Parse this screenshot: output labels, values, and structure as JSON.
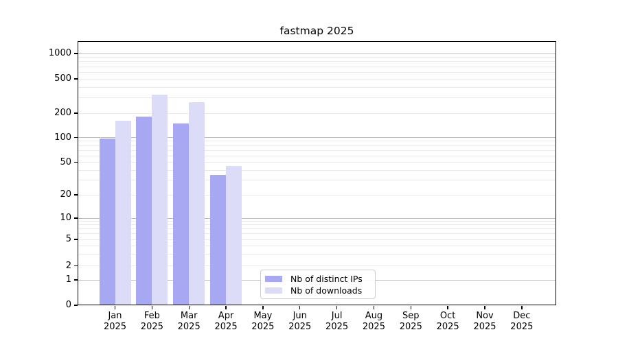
{
  "chart_data": {
    "type": "bar",
    "title": "fastmap 2025",
    "year_label": "2025",
    "categories": [
      "Jan",
      "Feb",
      "Mar",
      "Apr",
      "May",
      "Jun",
      "Jul",
      "Aug",
      "Sep",
      "Oct",
      "Nov",
      "Dec"
    ],
    "series": [
      {
        "name": "Nb of distinct IPs",
        "color": "#a8a8f2",
        "values": [
          97,
          180,
          150,
          35,
          0,
          0,
          0,
          0,
          0,
          0,
          0,
          0
        ]
      },
      {
        "name": "Nb of downloads",
        "color": "#dcdcf8",
        "values": [
          160,
          330,
          270,
          45,
          0,
          0,
          0,
          0,
          0,
          0,
          0,
          0
        ]
      }
    ],
    "xlabel": "",
    "ylabel": "",
    "y_axis": {
      "scale": "symlog",
      "tick_values": [
        0,
        1,
        2,
        5,
        10,
        20,
        50,
        100,
        200,
        500,
        1000
      ],
      "tick_labels": [
        "0",
        "1",
        "2",
        "5",
        "10",
        "20",
        "50",
        "100",
        "200",
        "500",
        "1000"
      ],
      "ylim": [
        0,
        1500
      ],
      "major_grid_values": [
        1,
        10,
        100,
        1000
      ]
    },
    "grid": "on",
    "legend": {
      "position": "lower-center",
      "entries": [
        "Nb of distinct IPs",
        "Nb of downloads"
      ]
    }
  },
  "colors": {
    "bar_distinct_ips": "#a8a8f2",
    "bar_downloads": "#dcdcf8",
    "grid_major": "#bdbdbd",
    "grid_minor": "#e9e9e9",
    "axis_spine": "#000000",
    "legend_border": "#cccccc",
    "text": "#000000"
  }
}
